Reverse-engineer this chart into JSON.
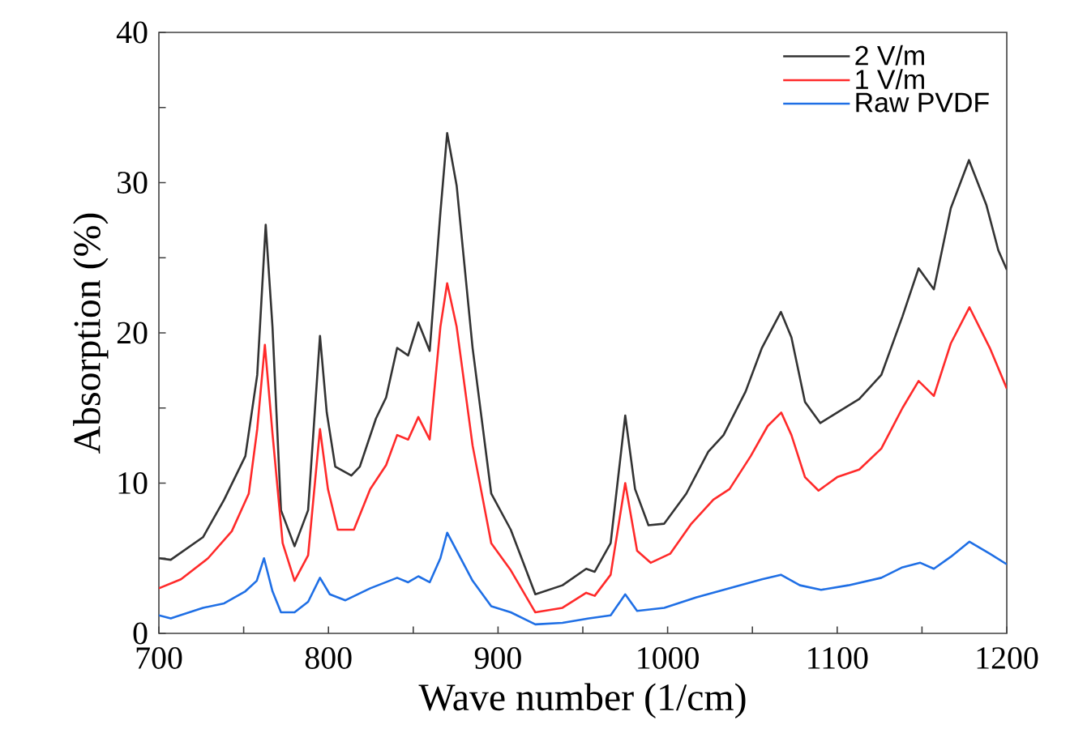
{
  "chart_data": {
    "type": "line",
    "xlabel": "Wave number (1/cm)",
    "ylabel": "Absorption (%)",
    "xlim": [
      700,
      1200
    ],
    "ylim": [
      0,
      40
    ],
    "xticks": [
      700,
      {
        "value": 750,
        "label": null
      },
      800,
      {
        "value": 850,
        "label": null
      },
      900,
      {
        "value": 950,
        "label": null
      },
      1000,
      {
        "value": 1050,
        "label": null
      },
      1100,
      {
        "value": 1150,
        "label": null
      },
      1200
    ],
    "yticks": [
      0,
      {
        "value": 5,
        "label": null
      },
      10,
      {
        "value": 15,
        "label": null
      },
      20,
      {
        "value": 25,
        "label": null
      },
      30,
      {
        "value": 35,
        "label": null
      },
      40
    ],
    "grid": false,
    "legend": "top right",
    "marker": "none",
    "line_style": "solid",
    "series": [
      {
        "name": "2 V/m",
        "color": "#333333",
        "x": [
          700,
          707,
          726,
          738.5,
          751,
          758,
          763,
          767,
          772,
          780,
          788,
          795,
          799,
          804,
          813.5,
          818.5,
          828,
          834,
          840.5,
          847,
          853,
          859.7,
          866,
          870,
          875.6,
          885,
          896,
          907.5,
          922,
          938,
          952,
          957,
          966.4,
          975,
          980.8,
          988.7,
          998,
          1011,
          1024,
          1033,
          1046,
          1055.6,
          1066.8,
          1073,
          1081,
          1090,
          1100,
          1113,
          1126,
          1138.5,
          1148,
          1157,
          1167,
          1177.7,
          1188,
          1195,
          1200
        ],
        "values": [
          5.0,
          4.9,
          6.4,
          8.9,
          11.8,
          17.2,
          27.2,
          20.4,
          8.2,
          5.8,
          8.2,
          19.8,
          14.7,
          11.1,
          10.5,
          11.1,
          14.3,
          15.7,
          19.0,
          18.5,
          20.7,
          18.8,
          28.0,
          33.3,
          29.8,
          19.0,
          9.3,
          6.9,
          2.6,
          3.2,
          4.3,
          4.1,
          6.0,
          14.5,
          9.6,
          7.2,
          7.3,
          9.3,
          12.1,
          13.2,
          16.1,
          19.0,
          21.4,
          19.7,
          15.4,
          14.0,
          14.7,
          15.6,
          17.2,
          21.1,
          24.3,
          22.9,
          28.3,
          31.5,
          28.5,
          25.5,
          24.2
        ]
      },
      {
        "name": "1 V/m",
        "color": "#ff2a2a",
        "x": [
          700,
          713,
          729,
          743,
          753,
          758,
          762.5,
          767,
          773,
          780,
          788,
          795,
          799.7,
          805.5,
          815,
          824.6,
          834,
          840.5,
          847,
          853,
          859.7,
          866,
          870,
          875.6,
          885,
          896,
          907.5,
          922,
          938,
          952,
          957,
          966.4,
          975,
          982,
          990,
          1001.5,
          1014,
          1027,
          1036.5,
          1049,
          1059,
          1067,
          1073,
          1081,
          1089,
          1100,
          1113,
          1126,
          1138.5,
          1148,
          1157,
          1167,
          1178,
          1190,
          1200
        ],
        "values": [
          3.0,
          3.6,
          5.0,
          6.8,
          9.3,
          13.6,
          19.2,
          13.3,
          6.0,
          3.5,
          5.2,
          13.6,
          9.6,
          6.9,
          6.9,
          9.6,
          11.2,
          13.2,
          12.9,
          14.4,
          12.9,
          20.4,
          23.3,
          20.4,
          12.5,
          6.0,
          4.2,
          1.4,
          1.7,
          2.7,
          2.5,
          3.9,
          10.0,
          5.5,
          4.7,
          5.3,
          7.3,
          8.9,
          9.6,
          11.8,
          13.8,
          14.7,
          13.2,
          10.4,
          9.5,
          10.4,
          10.9,
          12.3,
          15.0,
          16.8,
          15.8,
          19.3,
          21.7,
          19.0,
          16.3
        ]
      },
      {
        "name": "Raw PVDF",
        "color": "#1f6fe5",
        "x": [
          700,
          707,
          726,
          738.5,
          751,
          757.7,
          762,
          767,
          772,
          780,
          788,
          795,
          800.8,
          810,
          824.6,
          840.5,
          847,
          853,
          859.7,
          866,
          870,
          875.6,
          885,
          896,
          907.5,
          922,
          938,
          953.6,
          966.4,
          975,
          982,
          998,
          1017,
          1036.5,
          1055.6,
          1066.8,
          1078,
          1090.5,
          1106.6,
          1126,
          1138.5,
          1149,
          1157,
          1167,
          1178,
          1190,
          1200
        ],
        "values": [
          1.2,
          1.0,
          1.7,
          2.0,
          2.8,
          3.5,
          5.0,
          2.8,
          1.4,
          1.4,
          2.1,
          3.7,
          2.6,
          2.2,
          3.0,
          3.7,
          3.4,
          3.8,
          3.4,
          5.0,
          6.7,
          5.5,
          3.5,
          1.8,
          1.4,
          0.6,
          0.7,
          1.0,
          1.2,
          2.6,
          1.5,
          1.7,
          2.4,
          3.0,
          3.6,
          3.9,
          3.2,
          2.9,
          3.2,
          3.7,
          4.4,
          4.7,
          4.3,
          5.1,
          6.1,
          5.3,
          4.6
        ]
      }
    ]
  }
}
